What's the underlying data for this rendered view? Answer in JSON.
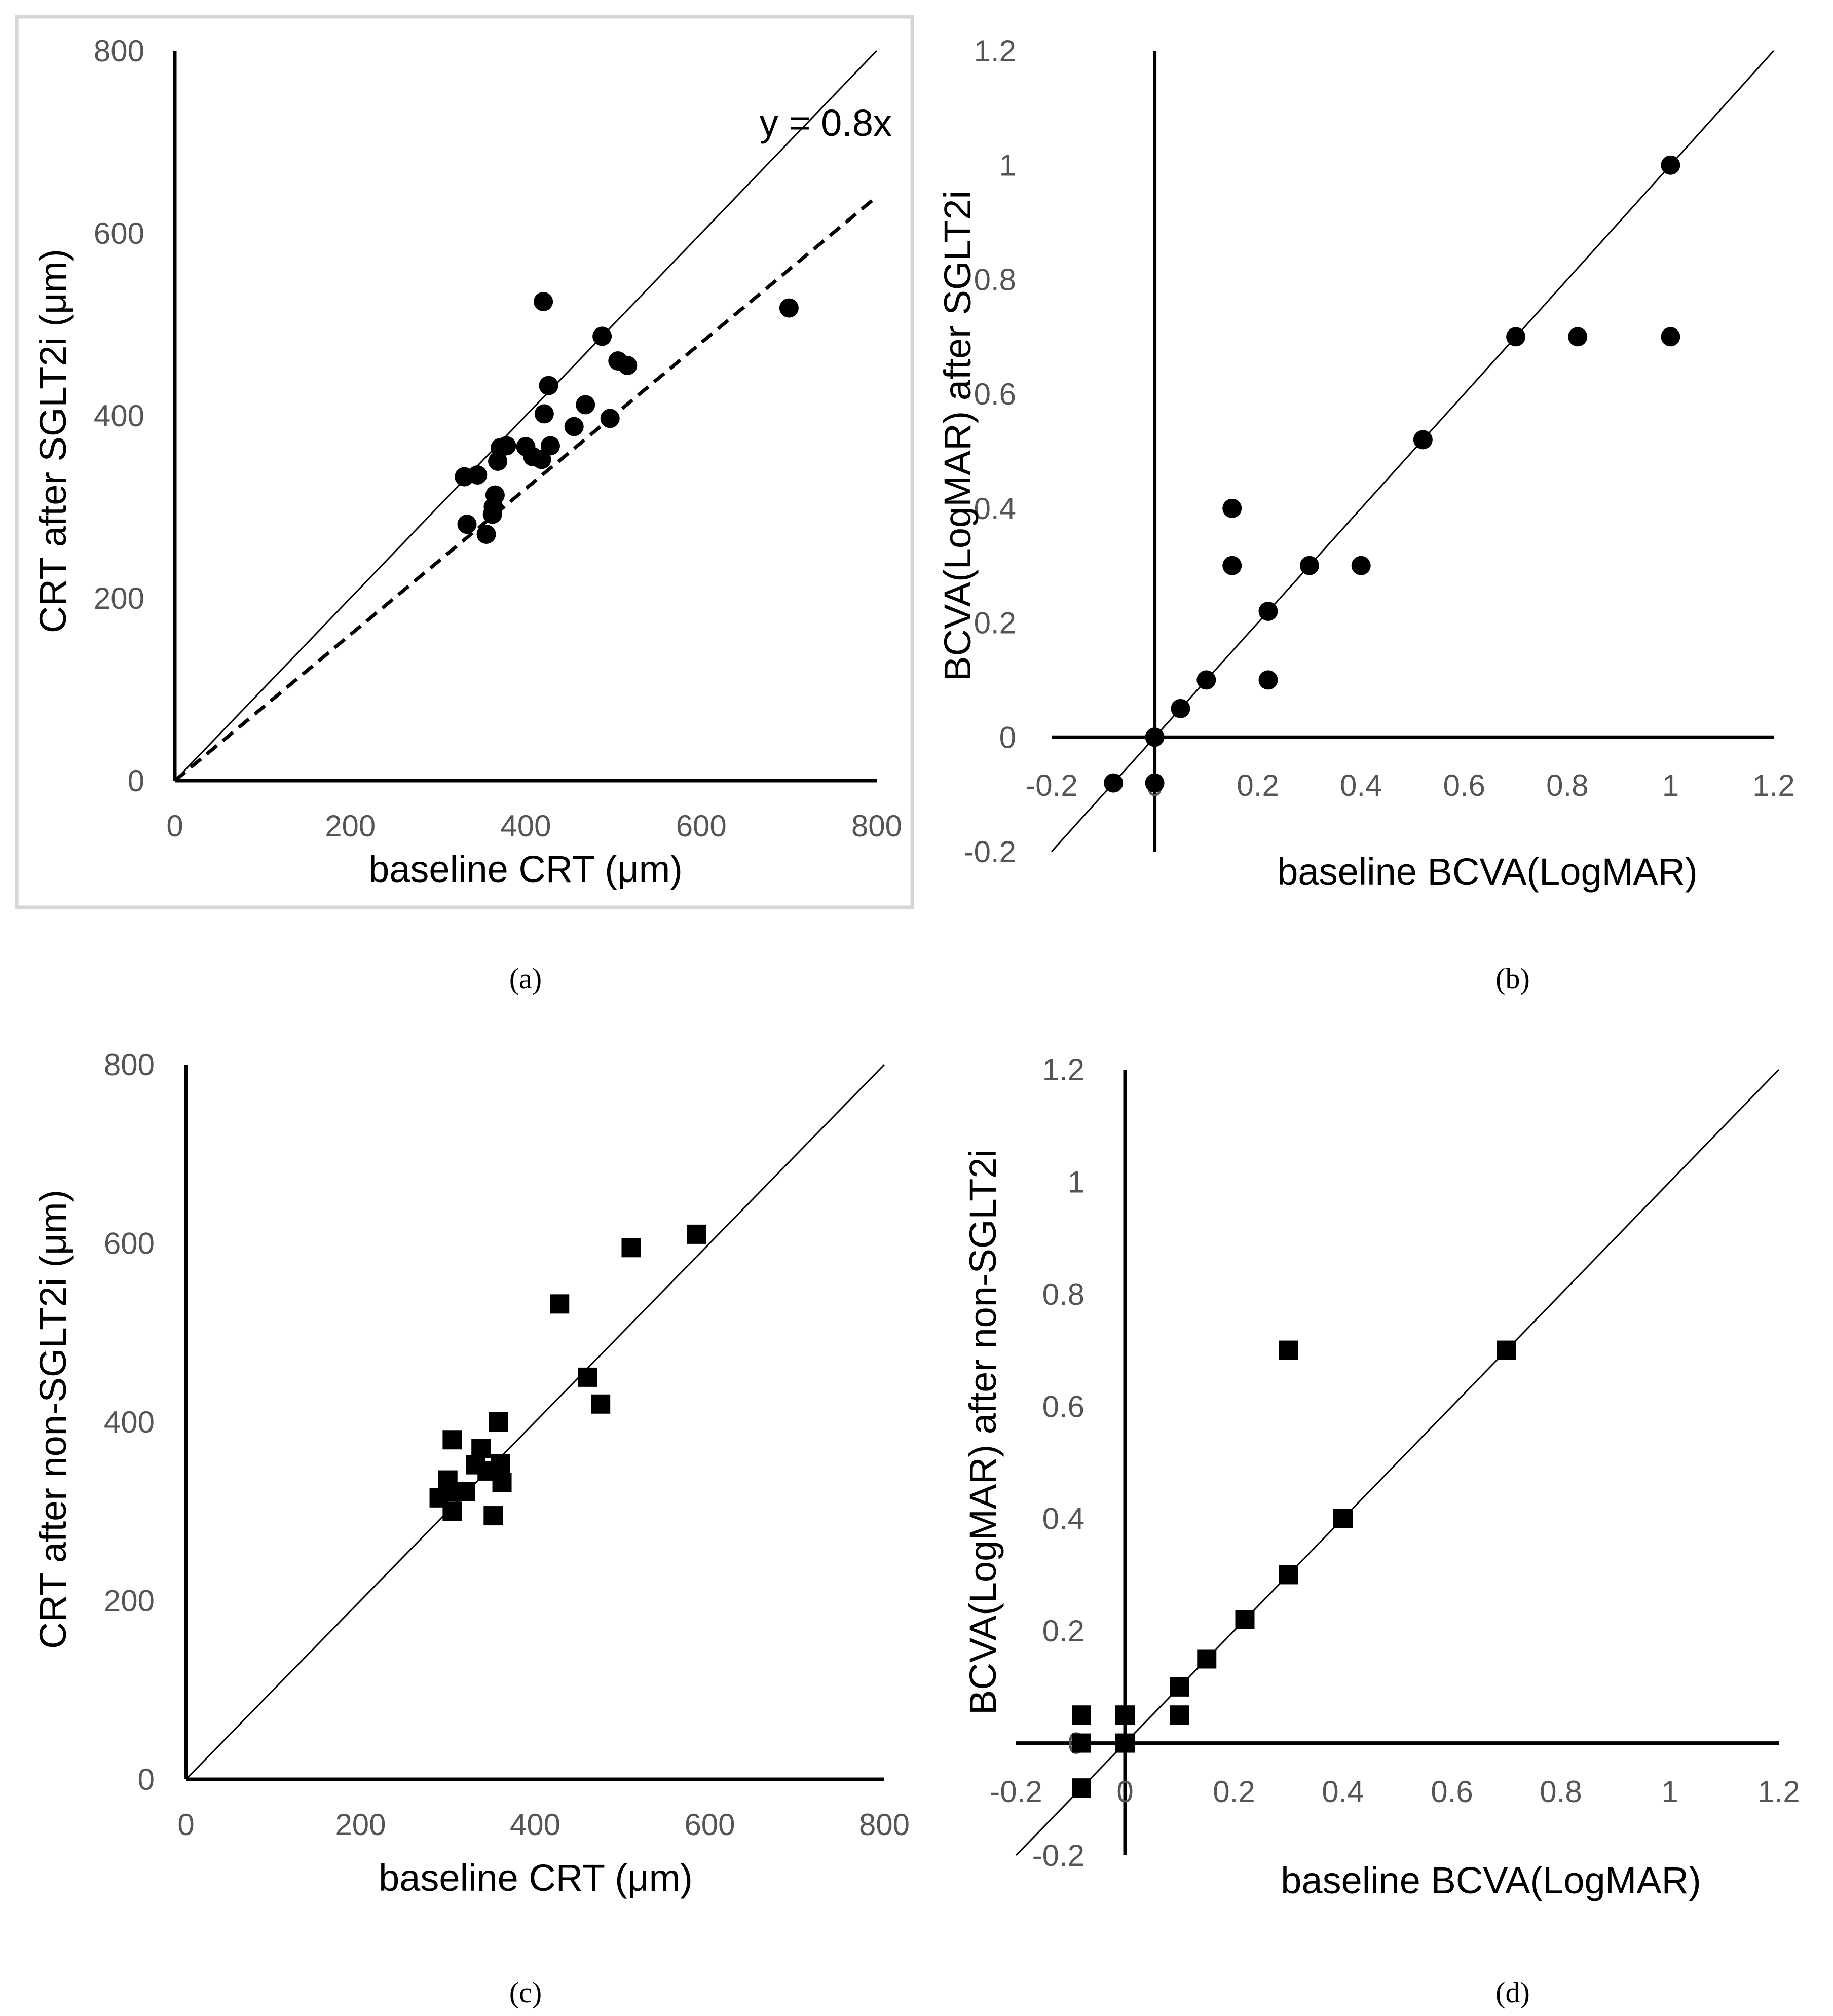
{
  "chart_data": [
    {
      "type": "scatter",
      "panel_label": "(a)",
      "xlabel": "baseline CRT (μm)",
      "ylabel": "CRT after SGLT2i (μm)",
      "xlim": [
        0,
        800
      ],
      "ylim": [
        0,
        800
      ],
      "xticks": [
        "0",
        "200",
        "400",
        "600",
        "800"
      ],
      "yticks": [
        "0",
        "200",
        "400",
        "600",
        "800"
      ],
      "marker": "circle",
      "reference_line": "y = x",
      "fit_line": {
        "slope": 0.8,
        "label": "y = 0.8x",
        "style": "dashed"
      },
      "points": [
        [
          330,
          333
        ],
        [
          333,
          281
        ],
        [
          345,
          335
        ],
        [
          355,
          270
        ],
        [
          362,
          292
        ],
        [
          363,
          300
        ],
        [
          365,
          313
        ],
        [
          368,
          350
        ],
        [
          371,
          365
        ],
        [
          378,
          367
        ],
        [
          400,
          366
        ],
        [
          408,
          355
        ],
        [
          418,
          352
        ],
        [
          420,
          525
        ],
        [
          421,
          402
        ],
        [
          426,
          433
        ],
        [
          428,
          367
        ],
        [
          455,
          388
        ],
        [
          468,
          412
        ],
        [
          487,
          487
        ],
        [
          496,
          397
        ],
        [
          505,
          460
        ],
        [
          516,
          455
        ],
        [
          700,
          518
        ]
      ]
    },
    {
      "type": "scatter",
      "panel_label": "(b)",
      "xlabel": "baseline BCVA(LogMAR)",
      "ylabel": "BCVA(LogMAR) after SGLT2i",
      "xlim": [
        -0.2,
        1.2
      ],
      "ylim": [
        -0.2,
        1.2
      ],
      "xticks": [
        "-0.2",
        "0",
        "0.2",
        "0.4",
        "0.6",
        "0.8",
        "1",
        "1.2"
      ],
      "yticks": [
        "-0.2",
        "0",
        "0.2",
        "0.4",
        "0.6",
        "0.8",
        "1",
        "1.2"
      ],
      "marker": "circle",
      "reference_line": "y = x",
      "points": [
        [
          -0.08,
          -0.08
        ],
        [
          0,
          -0.08
        ],
        [
          0,
          0
        ],
        [
          0.05,
          0.05
        ],
        [
          0.1,
          0.1
        ],
        [
          0.15,
          0.3
        ],
        [
          0.15,
          0.4
        ],
        [
          0.22,
          0.1
        ],
        [
          0.22,
          0.22
        ],
        [
          0.3,
          0.3
        ],
        [
          0.4,
          0.3
        ],
        [
          0.52,
          0.52
        ],
        [
          0.7,
          0.7
        ],
        [
          0.82,
          0.7
        ],
        [
          1,
          0.7
        ],
        [
          1,
          1
        ]
      ]
    },
    {
      "type": "scatter",
      "panel_label": "(c)",
      "xlabel": "baseline CRT (μm)",
      "ylabel": "CRT after non-SGLT2i (μm)",
      "xlim": [
        0,
        800
      ],
      "ylim": [
        0,
        800
      ],
      "xticks": [
        "0",
        "200",
        "400",
        "600",
        "800"
      ],
      "yticks": [
        "0",
        "200",
        "400",
        "600",
        "800"
      ],
      "marker": "square",
      "reference_line": "y = x",
      "points": [
        [
          290,
          315
        ],
        [
          300,
          335
        ],
        [
          305,
          380
        ],
        [
          305,
          300
        ],
        [
          310,
          322
        ],
        [
          320,
          322
        ],
        [
          332,
          352
        ],
        [
          338,
          370
        ],
        [
          345,
          345
        ],
        [
          352,
          295
        ],
        [
          358,
          400
        ],
        [
          360,
          353
        ],
        [
          362,
          332
        ],
        [
          428,
          532
        ],
        [
          460,
          450
        ],
        [
          475,
          420
        ],
        [
          510,
          595
        ],
        [
          585,
          610
        ]
      ]
    },
    {
      "type": "scatter",
      "panel_label": "(d)",
      "xlabel": "baseline BCVA(LogMAR)",
      "ylabel": "BCVA(LogMAR) after non-SGLT2i",
      "xlim": [
        -0.2,
        1.2
      ],
      "ylim": [
        -0.2,
        1.2
      ],
      "xticks": [
        "-0.2",
        "0",
        "0.2",
        "0.4",
        "0.6",
        "0.8",
        "1",
        "1.2"
      ],
      "yticks": [
        "-0.2",
        "0",
        "0.2",
        "0.4",
        "0.6",
        "0.8",
        "1",
        "1.2"
      ],
      "marker": "square",
      "reference_line": "y = x",
      "points": [
        [
          -0.08,
          -0.08
        ],
        [
          -0.08,
          0
        ],
        [
          -0.08,
          0.05
        ],
        [
          0,
          0
        ],
        [
          0,
          0.05
        ],
        [
          0.1,
          0.05
        ],
        [
          0.1,
          0.1
        ],
        [
          0.15,
          0.15
        ],
        [
          0.22,
          0.22
        ],
        [
          0.3,
          0.3
        ],
        [
          0.3,
          0.7
        ],
        [
          0.4,
          0.4
        ],
        [
          0.7,
          0.7
        ]
      ]
    }
  ]
}
